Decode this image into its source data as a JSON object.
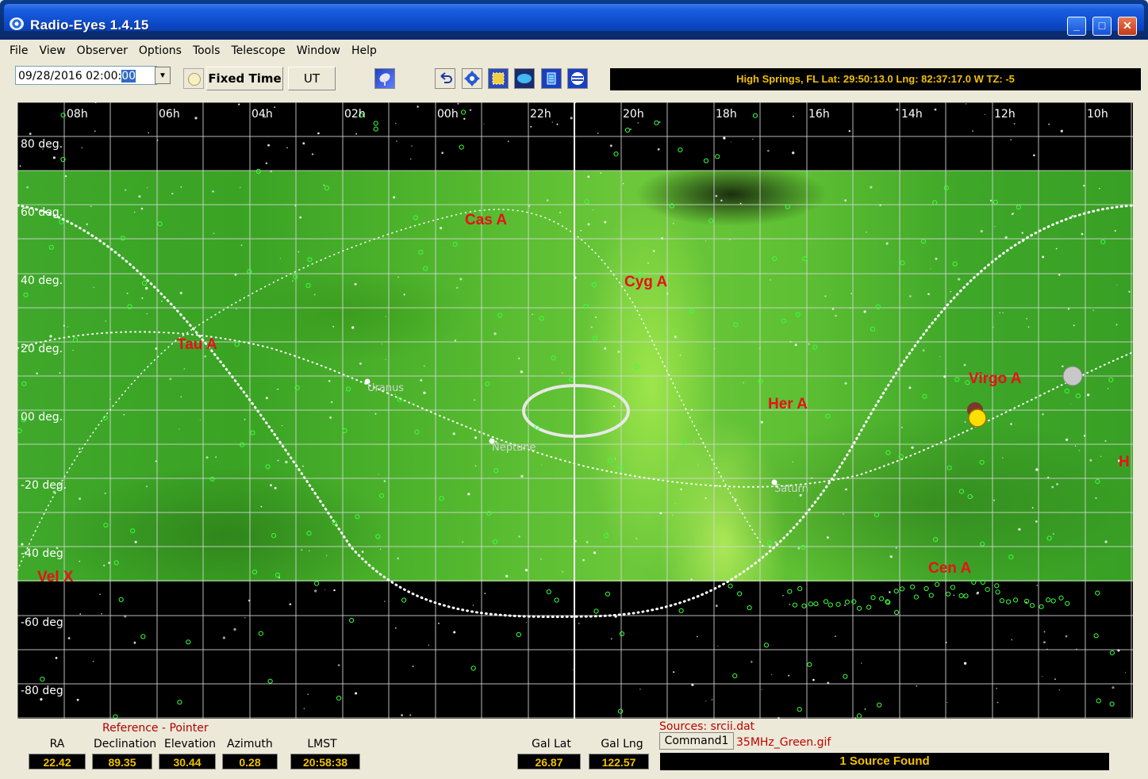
{
  "window": {
    "title": "Radio-Eyes     1.4.15",
    "minimize": "_",
    "maximize": "□",
    "close": "✕"
  },
  "menu": [
    "File",
    "View",
    "Observer",
    "Options",
    "Tools",
    "Telescope",
    "Window",
    "Help"
  ],
  "toolbar": {
    "date_value": "09/28/2016  02:00:",
    "date_selected": "00",
    "dropdown": "▼",
    "fixed_time": "Fixed Time",
    "ut": "UT",
    "location": "High Springs, FL   Lat: 29:50:13.0   Lng: 82:37:17.0 W   TZ: -5"
  },
  "map": {
    "ra_labels": [
      "08h",
      "06h",
      "04h",
      "02h",
      "00h",
      "22h",
      "20h",
      "18h",
      "16h",
      "14h",
      "12h",
      "10h"
    ],
    "dec_labels": [
      "80 deg.",
      "60 deg.",
      "40 deg.",
      "20 deg.",
      "00 deg.",
      "-20 deg.",
      "-40 deg",
      "-60 deg",
      "-80 deg"
    ],
    "sources": [
      "Cas A",
      "Cyg A",
      "Tau A",
      "Virgo A",
      "Her A",
      "Cen A",
      "Vel X",
      "H"
    ],
    "planets": [
      "Uranus",
      "Neptune",
      "Saturn"
    ]
  },
  "bottom": {
    "reference_title": "Reference - Pointer",
    "labels": {
      "ra": "RA",
      "declination": "Declination",
      "elevation": "Elevation",
      "azimuth": "Azimuth",
      "lmst": "LMST",
      "gal_lat": "Gal Lat",
      "gal_lng": "Gal Lng"
    },
    "values": {
      "ra": "22.42",
      "declination": "89.35",
      "elevation": "30.44",
      "azimuth": "0.28",
      "lmst": "20:58:38",
      "gal_lat": "26.87",
      "gal_lng": "122.57"
    },
    "sources_file": "Sources: srcii.dat",
    "image_file": "35MHz_Green.gif",
    "command_button": "Command1",
    "status": "1 Source Found"
  }
}
